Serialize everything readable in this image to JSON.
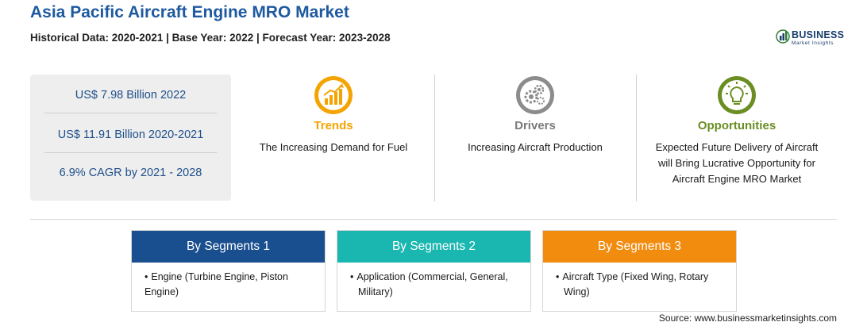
{
  "header": {
    "title": "Asia Pacific Aircraft Engine MRO Market",
    "subtitle": "Historical Data: 2020-2021 | Base Year: 2022 | Forecast Year: 2023-2028"
  },
  "logo": {
    "brand": "BUSINESS",
    "tagline": "Market Insights",
    "icon": "chart-globe-icon"
  },
  "stats": [
    "US$ 7.98 Billion 2022",
    "US$ 11.91 Billion 2020-2021",
    "6.9% CAGR by 2021 - 2028"
  ],
  "cards": {
    "trends": {
      "label": "Trends",
      "desc": "The Increasing Demand for Fuel",
      "color": "#f5a300",
      "icon": "trend-chart-icon"
    },
    "drivers": {
      "label": "Drivers",
      "desc": "Increasing Aircraft Production",
      "color": "#8c8c8c",
      "icon": "gears-icon"
    },
    "opportunities": {
      "label": "Opportunities",
      "desc_lines": [
        "Expected Future Delivery of Aircraft",
        "will Bring Lucrative Opportunity for",
        "Aircraft Engine MRO Market"
      ],
      "color": "#6b8e23",
      "icon": "lightbulb-icon"
    }
  },
  "segments": [
    {
      "title": "By Segments 1",
      "color": "#1a4f8f",
      "lines": [
        "Engine (Turbine Engine, Piston Engine)"
      ]
    },
    {
      "title": "By Segments 2",
      "color": "#1ab7b0",
      "lines": [
        "Application (Commercial, General,",
        "Military)"
      ]
    },
    {
      "title": "By Segments 3",
      "color": "#f28c0f",
      "lines": [
        "Aircraft Type (Fixed Wing, Rotary",
        "Wing)"
      ]
    }
  ],
  "source": "Source: www.businessmarketinsights.com"
}
